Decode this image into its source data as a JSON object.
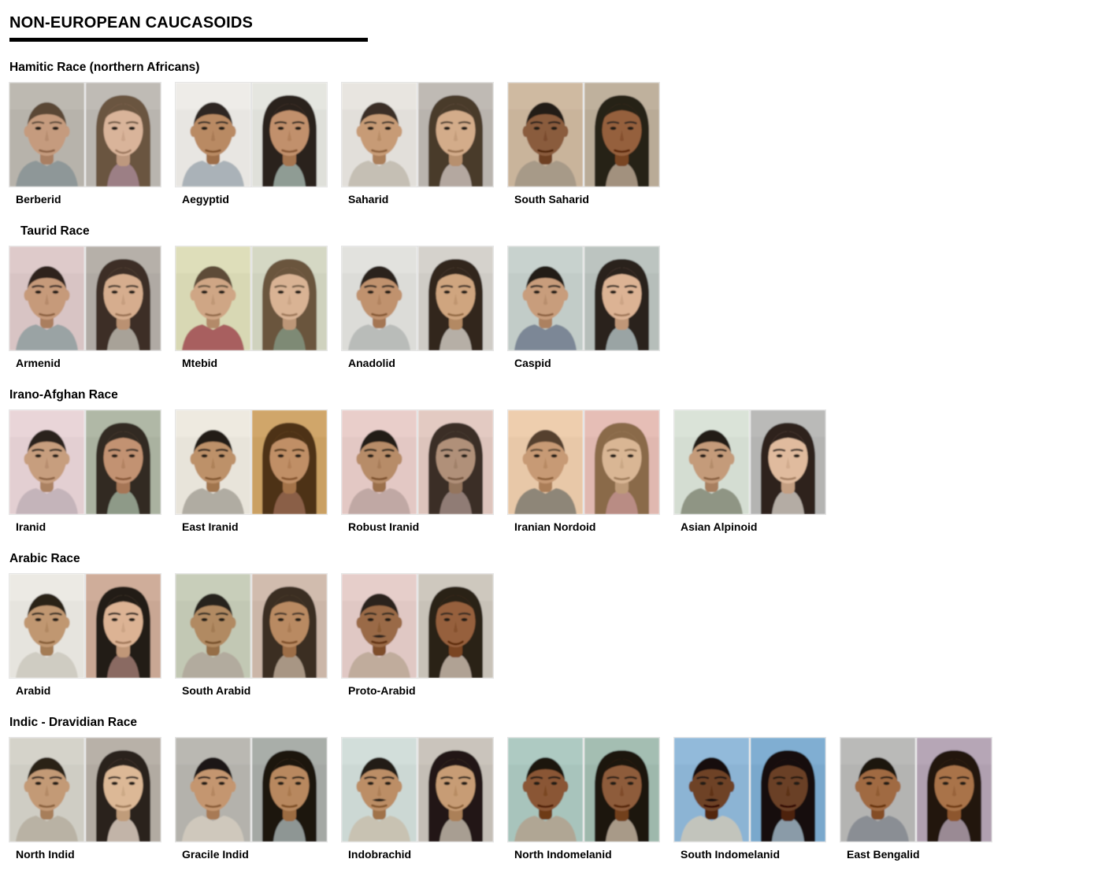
{
  "page": {
    "title": "NON-EUROPEAN CAUCASOIDS",
    "background": "#ffffff",
    "accent_rule_color": "#000000"
  },
  "sections": [
    {
      "heading": "Hamitic Race (northern Africans)",
      "indent": false,
      "items": [
        {
          "label": "Berberid",
          "male": {
            "skin": "#c59b7e",
            "hair": "#5a4635",
            "bg": "#b7b3ab",
            "shirt": "#8e9798"
          },
          "female": {
            "skin": "#d9b49a",
            "hair": "#6b543f",
            "bg": "#b9b5af",
            "shirt": "#9c7f85",
            "smile": true
          }
        },
        {
          "label": "Aegyptid",
          "male": {
            "skin": "#b98a64",
            "hair": "#2e2620",
            "bg": "#e8e6e2",
            "shirt": "#aab2b8"
          },
          "female": {
            "skin": "#c1906c",
            "hair": "#2b221c",
            "bg": "#dfe0da",
            "shirt": "#8f9c94"
          }
        },
        {
          "label": "Saharid",
          "male": {
            "skin": "#c79b76",
            "hair": "#3a2f26",
            "bg": "#e2dfda",
            "shirt": "#c5bfb4"
          },
          "female": {
            "skin": "#d3ac8a",
            "hair": "#4a3a2c",
            "bg": "#b9b4ae",
            "shirt": "#b4a8a0"
          }
        },
        {
          "label": "South Saharid",
          "male": {
            "skin": "#8a5c3c",
            "hair": "#241c16",
            "bg": "#c9b49b",
            "shirt": "#a79a88"
          },
          "female": {
            "skin": "#95603d",
            "hair": "#262019",
            "bg": "#b9ab97",
            "shirt": "#a2917e"
          }
        }
      ]
    },
    {
      "heading": "Taurid Race",
      "indent": true,
      "items": [
        {
          "label": "Armenid",
          "male": {
            "skin": "#c69a7a",
            "hair": "#2d241e",
            "bg": "#d8c4c4",
            "shirt": "#9aa3a4"
          },
          "female": {
            "skin": "#d6ad8e",
            "hair": "#3c2f26",
            "bg": "#b0aaa4",
            "shirt": "#a8a298"
          }
        },
        {
          "label": "Mtebid",
          "male": {
            "skin": "#cfa685",
            "hair": "#5d4c39",
            "bg": "#d8d8b4",
            "shirt": "#a85f5f"
          },
          "female": {
            "skin": "#d9b394",
            "hair": "#6a553e",
            "bg": "#cfd2be",
            "shirt": "#7e8a74"
          }
        },
        {
          "label": "Anadolid",
          "male": {
            "skin": "#c0926e",
            "hair": "#2b211b",
            "bg": "#dcdcd8",
            "shirt": "#b9bcb9"
          },
          "female": {
            "skin": "#cfa57f",
            "hair": "#32271f",
            "bg": "#cfccc6",
            "shirt": "#b6afa6"
          }
        },
        {
          "label": "Caspid",
          "male": {
            "skin": "#c89d7c",
            "hair": "#241d18",
            "bg": "#c2ccc8",
            "shirt": "#7b8796"
          },
          "female": {
            "skin": "#dcb394",
            "hair": "#29211b",
            "bg": "#b6beba",
            "shirt": "#9aa4a4"
          }
        }
      ]
    },
    {
      "heading": "Irano-Afghan Race",
      "indent": false,
      "items": [
        {
          "label": "Iranid",
          "male": {
            "skin": "#c79e7e",
            "hair": "#2a211b",
            "bg": "#e3cfd2",
            "shirt": "#c4b4ba"
          },
          "female": {
            "skin": "#c29272",
            "hair": "#332a22",
            "bg": "#aab2a0",
            "shirt": "#8e9a88"
          }
        },
        {
          "label": "East Iranid",
          "male": {
            "skin": "#bd9169",
            "hair": "#231c16",
            "bg": "#e8e4da",
            "shirt": "#b0aca2"
          },
          "female": {
            "skin": "#c08f66",
            "hair": "#4e3215",
            "bg": "#caa064",
            "shirt": "#8a5f46"
          }
        },
        {
          "label": "Robust Iranid",
          "male": {
            "skin": "#b78c68",
            "hair": "#241d17",
            "bg": "#e3c8c4",
            "shirt": "#c0a8a4"
          },
          "female": {
            "skin": "#b09079",
            "hair": "#3a2f27",
            "bg": "#ddc4bc",
            "shirt": "#907c74"
          }
        },
        {
          "label": "Iranian Nordoid",
          "male": {
            "skin": "#c79a74",
            "hair": "#55412e",
            "bg": "#e8c8a8",
            "shirt": "#8e8678"
          },
          "female": {
            "skin": "#d9b694",
            "hair": "#8a6a4a",
            "bg": "#e0b8b0",
            "shirt": "#b98c84"
          }
        },
        {
          "label": "Asian Alpinoid",
          "male": {
            "skin": "#c49b7a",
            "hair": "#221b16",
            "bg": "#d4ddd2",
            "shirt": "#8f9584"
          },
          "female": {
            "skin": "#e0bb9e",
            "hair": "#2e241d",
            "bg": "#b4b4b2",
            "shirt": "#b4aca4"
          }
        }
      ]
    },
    {
      "heading": "Arabic Race",
      "indent": false,
      "items": [
        {
          "label": "Arabid",
          "male": {
            "skin": "#c09771",
            "hair": "#292118",
            "bg": "#e6e4de",
            "shirt": "#cfccc2"
          },
          "female": {
            "skin": "#dcb394",
            "hair": "#231a14",
            "bg": "#c9a794",
            "shirt": "#8a6a62"
          }
        },
        {
          "label": "South Arabid",
          "male": {
            "skin": "#b18a62",
            "hair": "#26221c",
            "bg": "#c2c8b4",
            "shirt": "#b2ab9e"
          },
          "female": {
            "skin": "#b98a62",
            "hair": "#3a2d22",
            "bg": "#cbb6a8",
            "shirt": "#a89684"
          }
        },
        {
          "label": "Proto-Arabid",
          "male": {
            "skin": "#9a6a46",
            "hair": "#2a211a",
            "bg": "#e0c8c4",
            "shirt": "#c0ac9c",
            "mustache": true
          },
          "female": {
            "skin": "#96613c",
            "hair": "#2c2119",
            "bg": "#c8c2b8",
            "shirt": "#b0a294",
            "smile": true
          }
        }
      ]
    },
    {
      "heading": "Indic - Dravidian Race",
      "indent": false,
      "items": [
        {
          "label": "North Indid",
          "male": {
            "skin": "#c39a76",
            "hair": "#2a2018",
            "bg": "#cfcdc4",
            "shirt": "#b9b2a4"
          },
          "female": {
            "skin": "#dcb896",
            "hair": "#29201a",
            "bg": "#b2aba2",
            "shirt": "#c2b4a8"
          }
        },
        {
          "label": "Gracile Indid",
          "male": {
            "skin": "#c49670",
            "hair": "#1e1712",
            "bg": "#b4b2ac",
            "shirt": "#cfc8bc"
          },
          "female": {
            "skin": "#b8885e",
            "hair": "#1c1510",
            "bg": "#a4a8a4",
            "shirt": "#8e9694"
          }
        },
        {
          "label": "Indobrachid",
          "male": {
            "skin": "#bc8e66",
            "hair": "#241c14",
            "bg": "#ccd8d4",
            "shirt": "#c8c2b2",
            "mustache": true
          },
          "female": {
            "skin": "#c79c74",
            "hair": "#201812",
            "bg": "#c4beb6",
            "shirt": "#a89e92",
            "smile": true
          }
        },
        {
          "label": "North Indomelanid",
          "male": {
            "skin": "#8a5634",
            "hair": "#1a130e",
            "bg": "#a8c4bc",
            "shirt": "#b0a694"
          },
          "female": {
            "skin": "#8e5c3a",
            "hair": "#1c140e",
            "bg": "#9eb8ac",
            "shirt": "#a89a88"
          }
        },
        {
          "label": "South Indomelanid",
          "male": {
            "skin": "#6e4226",
            "hair": "#160f0a",
            "bg": "#8cb4d4",
            "shirt": "#c2c4bc",
            "mustache": true
          },
          "female": {
            "skin": "#6a4026",
            "hair": "#171009",
            "bg": "#7aa8cc",
            "shirt": "#8a9ba8"
          }
        },
        {
          "label": "East Bengalid",
          "male": {
            "skin": "#a06a42",
            "hair": "#1c140e",
            "bg": "#b4b4b2",
            "shirt": "#8a8e94"
          },
          "female": {
            "skin": "#a9734a",
            "hair": "#20160f",
            "bg": "#b0a0b0",
            "shirt": "#9a8a94"
          }
        }
      ]
    }
  ]
}
